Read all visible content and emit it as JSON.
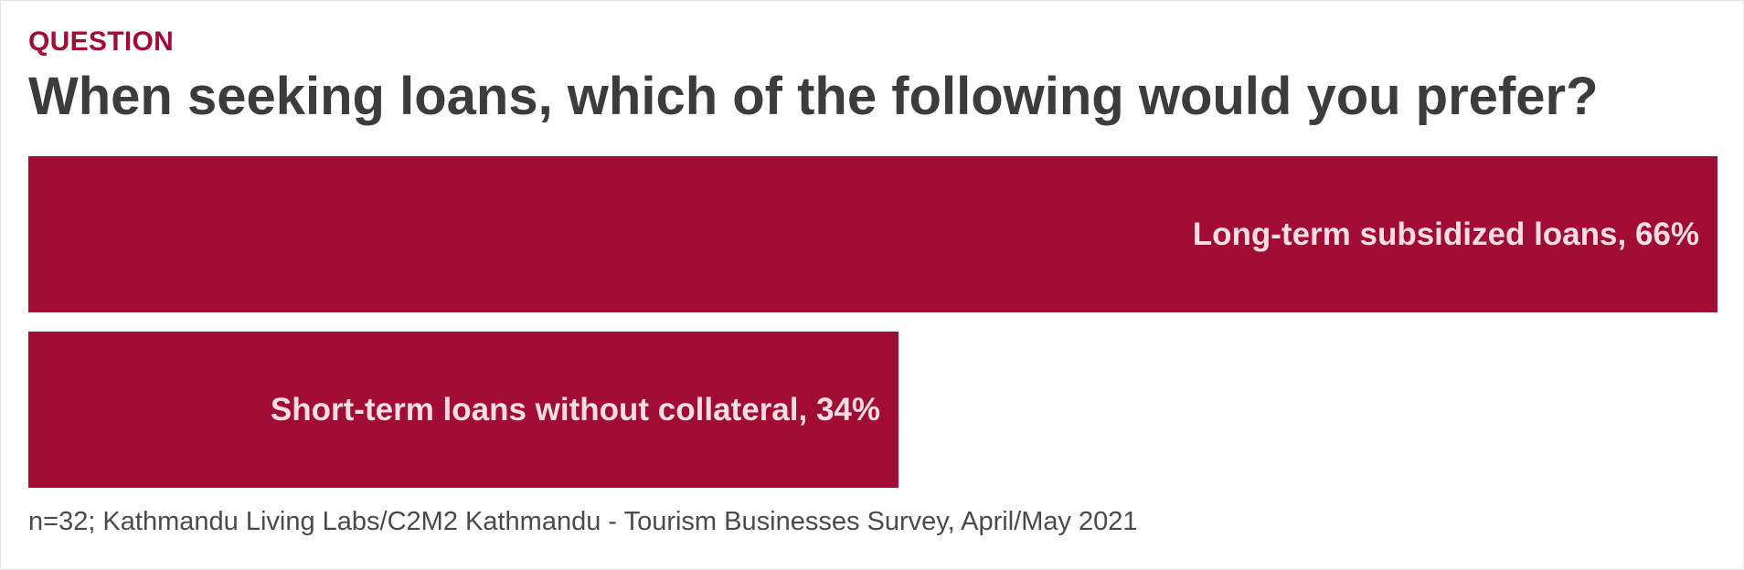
{
  "header": {
    "eyebrow": "QUESTION",
    "title": "When seeking loans, which of the following would you prefer?"
  },
  "footnote": "n=32; Kathmandu Living Labs/C2M2 Kathmandu - Tourism Businesses Survey, April/May 2021",
  "colors": {
    "bar": "#a10c35",
    "label_inside": "#f5dde3",
    "label_outside": "#4a4a4a",
    "title": "#3c3c3c",
    "eyebrow": "#a10c35"
  },
  "chart_data": {
    "type": "bar",
    "orientation": "horizontal",
    "categories": [
      "Long-term subsidized loans",
      "Short-term loans without collateral"
    ],
    "values": [
      66,
      34
    ],
    "unit": "%",
    "labels": [
      "Long-term subsidized loans, 66%",
      "Short-term loans without collateral, 34%"
    ],
    "xlim": [
      0,
      66
    ],
    "grid": false,
    "axes_visible": false,
    "legend": "none"
  }
}
